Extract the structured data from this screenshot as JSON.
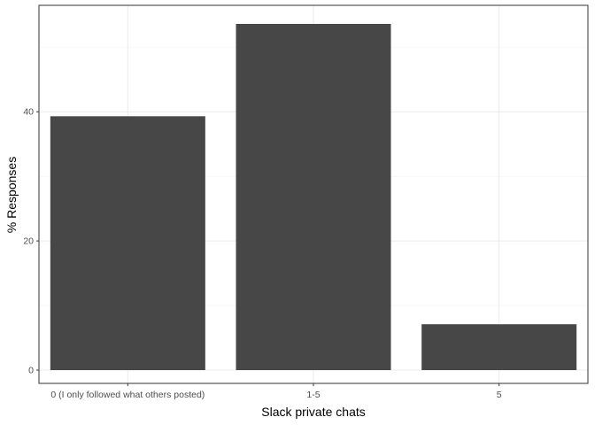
{
  "chart_data": {
    "type": "bar",
    "title": "",
    "xlabel": "Slack private chats",
    "ylabel": "% Responses",
    "categories": [
      "0 (I only followed what others posted)",
      "1-5",
      "5"
    ],
    "values": [
      39.3,
      53.6,
      7.1
    ],
    "ylim": [
      0,
      56.3
    ],
    "yticks": [
      0,
      20,
      40
    ],
    "grid": true,
    "bar_color": "#474747"
  }
}
